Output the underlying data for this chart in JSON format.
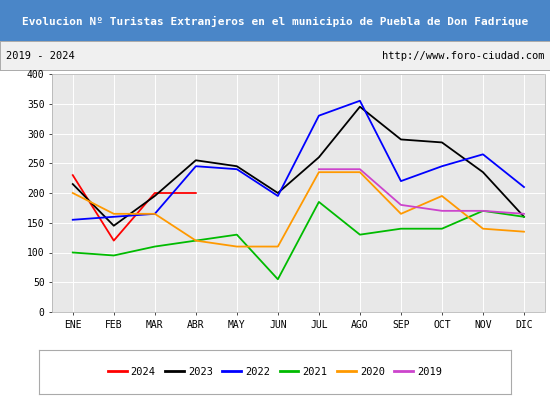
{
  "title": "Evolucion Nº Turistas Extranjeros en el municipio de Puebla de Don Fadrique",
  "subtitle_left": "2019 - 2024",
  "subtitle_right": "http://www.foro-ciudad.com",
  "title_bg_color": "#4a86c8",
  "title_text_color": "#ffffff",
  "subtitle_bg_color": "#f0f0f0",
  "plot_bg_color": "#e8e8e8",
  "months": [
    "ENE",
    "FEB",
    "MAR",
    "ABR",
    "MAY",
    "JUN",
    "JUL",
    "AGO",
    "SEP",
    "OCT",
    "NOV",
    "DIC"
  ],
  "series": {
    "2024": {
      "color": "#ff0000",
      "data": [
        230,
        120,
        200,
        200,
        null,
        null,
        null,
        null,
        null,
        null,
        null,
        null
      ]
    },
    "2023": {
      "color": "#000000",
      "data": [
        215,
        145,
        195,
        255,
        245,
        200,
        260,
        345,
        290,
        285,
        235,
        160
      ]
    },
    "2022": {
      "color": "#0000ff",
      "data": [
        155,
        160,
        165,
        245,
        240,
        195,
        330,
        355,
        220,
        245,
        265,
        210
      ]
    },
    "2021": {
      "color": "#00bb00",
      "data": [
        100,
        95,
        110,
        120,
        130,
        55,
        185,
        130,
        140,
        140,
        170,
        160
      ]
    },
    "2020": {
      "color": "#ff9900",
      "data": [
        200,
        165,
        165,
        120,
        110,
        110,
        235,
        235,
        165,
        195,
        140,
        135
      ]
    },
    "2019": {
      "color": "#cc44cc",
      "data": [
        null,
        null,
        null,
        null,
        null,
        null,
        240,
        240,
        180,
        170,
        170,
        165
      ]
    }
  },
  "ylim": [
    0,
    400
  ],
  "yticks": [
    0,
    50,
    100,
    150,
    200,
    250,
    300,
    350,
    400
  ],
  "legend_order": [
    "2024",
    "2023",
    "2022",
    "2021",
    "2020",
    "2019"
  ]
}
